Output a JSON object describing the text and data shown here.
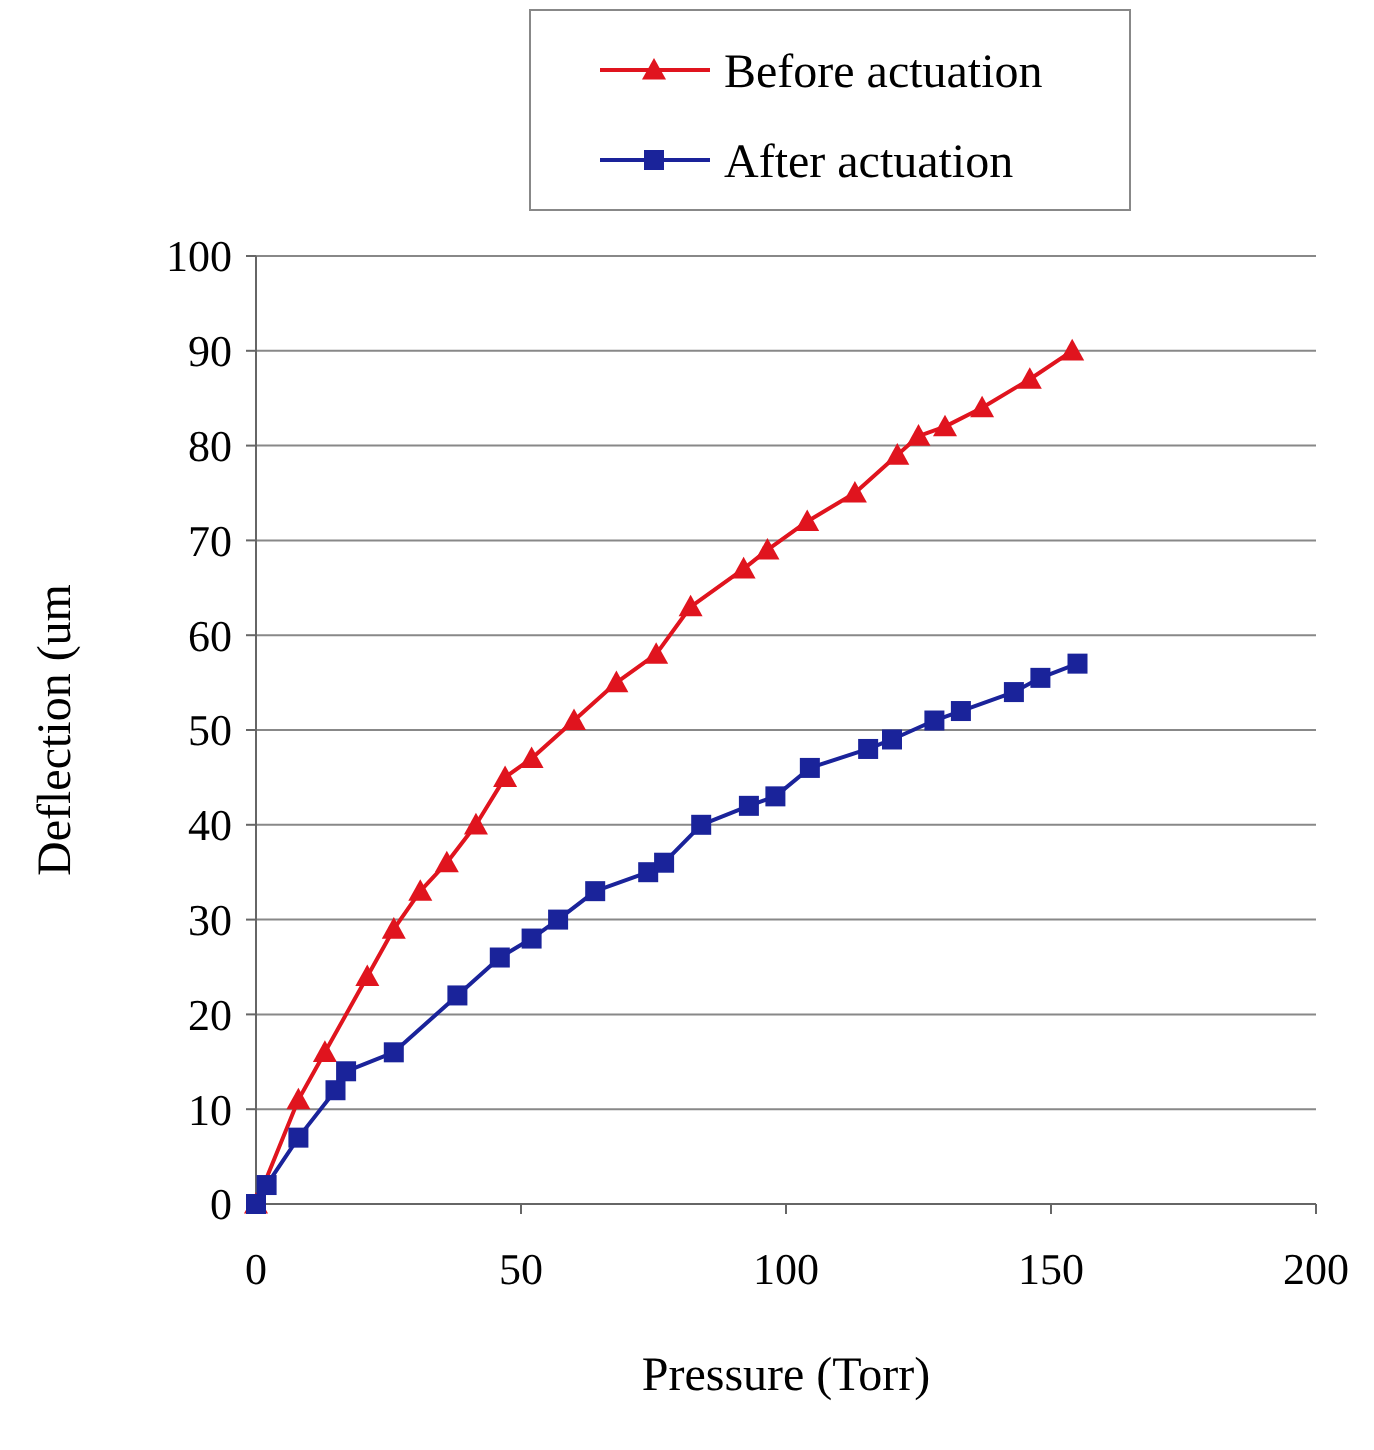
{
  "chart_data": {
    "type": "line",
    "xlabel": "Pressure (Torr)",
    "ylabel": "Deflection (um",
    "xlim": [
      0,
      200
    ],
    "ylim": [
      0,
      100
    ],
    "xticks": [
      0,
      50,
      100,
      150,
      200
    ],
    "yticks": [
      0,
      10,
      20,
      30,
      40,
      50,
      60,
      70,
      80,
      90,
      100
    ],
    "grid": "y",
    "legend": "top",
    "series": [
      {
        "name": "Before actuation",
        "color": "#e0141e",
        "marker": "triangle",
        "x": [
          0,
          8,
          13,
          21,
          26,
          31,
          36,
          41.5,
          47,
          52,
          60,
          68,
          75.5,
          82,
          92,
          96.5,
          104,
          113,
          121,
          125,
          130,
          137,
          146,
          154
        ],
        "values": [
          0,
          11,
          16,
          24,
          29,
          33,
          36,
          40,
          45,
          47,
          51,
          55,
          58,
          63,
          67,
          69,
          72,
          75,
          79,
          81,
          82,
          84,
          87,
          90
        ]
      },
      {
        "name": "After actuation",
        "color": "#1a239a",
        "marker": "square",
        "x": [
          0,
          2,
          8,
          15,
          17,
          26,
          38,
          46,
          52,
          57,
          64,
          74,
          77,
          84,
          93,
          98,
          104.5,
          115.5,
          120,
          128,
          133,
          143,
          148,
          155
        ],
        "values": [
          0,
          2,
          7,
          12,
          14,
          16,
          22,
          26,
          28,
          30,
          33,
          35,
          36,
          40,
          42,
          43,
          46,
          48,
          49,
          51,
          52,
          54,
          55.5,
          57
        ]
      }
    ]
  }
}
